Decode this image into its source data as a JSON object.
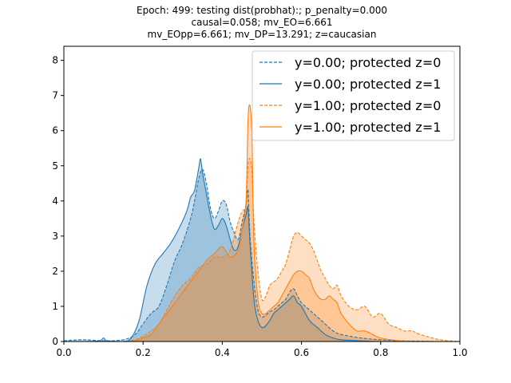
{
  "chart_data": {
    "type": "area",
    "title_lines": [
      "Epoch: 499: testing dist(probhat):; p_penalty=0.000",
      "causal=0.058; mv_EO=6.661",
      "mv_EOpp=6.661; mv_DP=13.291; z=caucasian"
    ],
    "xlabel": "",
    "ylabel": "",
    "xlim": [
      0.0,
      1.0
    ],
    "ylim": [
      0,
      8.4
    ],
    "x_ticks": [
      0.0,
      0.2,
      0.4,
      0.6,
      0.8,
      1.0
    ],
    "x_tick_labels": [
      "0.0",
      "0.2",
      "0.4",
      "0.6",
      "0.8",
      "1.0"
    ],
    "y_ticks": [
      0,
      1,
      2,
      3,
      4,
      5,
      6,
      7,
      8
    ],
    "y_tick_labels": [
      "0",
      "1",
      "2",
      "3",
      "4",
      "5",
      "6",
      "7",
      "8"
    ],
    "grid": false,
    "legend_position": "top-right",
    "series": [
      {
        "name": "y=0.00; protected z=0",
        "color": "#1f77b4",
        "dash": true,
        "x": [
          0.0,
          0.05,
          0.1,
          0.15,
          0.18,
          0.2,
          0.22,
          0.24,
          0.26,
          0.28,
          0.3,
          0.32,
          0.33,
          0.34,
          0.35,
          0.36,
          0.37,
          0.38,
          0.39,
          0.4,
          0.41,
          0.42,
          0.43,
          0.44,
          0.45,
          0.46,
          0.465,
          0.47,
          0.48,
          0.49,
          0.5,
          0.51,
          0.52,
          0.53,
          0.54,
          0.55,
          0.56,
          0.57,
          0.58,
          0.59,
          0.6,
          0.62,
          0.64,
          0.66,
          0.68,
          0.7,
          0.75,
          0.8,
          0.85,
          0.9,
          0.95,
          1.0
        ],
        "y": [
          0.02,
          0.05,
          0.02,
          0.05,
          0.2,
          0.5,
          0.8,
          1.0,
          1.6,
          2.3,
          2.8,
          3.5,
          4.0,
          4.6,
          4.9,
          4.5,
          3.8,
          3.5,
          3.7,
          4.0,
          3.9,
          3.4,
          3.1,
          2.9,
          3.4,
          3.9,
          4.3,
          3.0,
          1.7,
          0.9,
          0.7,
          0.75,
          0.85,
          0.9,
          1.0,
          1.1,
          1.2,
          1.4,
          1.5,
          1.3,
          1.1,
          0.9,
          0.7,
          0.5,
          0.3,
          0.2,
          0.1,
          0.05,
          0.02,
          0.01,
          0.0,
          0.0
        ]
      },
      {
        "name": "y=0.00; protected z=1",
        "color": "#1f77b4",
        "dash": false,
        "x": [
          0.0,
          0.05,
          0.09,
          0.1,
          0.11,
          0.15,
          0.17,
          0.19,
          0.21,
          0.23,
          0.25,
          0.27,
          0.29,
          0.31,
          0.32,
          0.33,
          0.34,
          0.345,
          0.35,
          0.36,
          0.37,
          0.38,
          0.39,
          0.4,
          0.41,
          0.42,
          0.43,
          0.44,
          0.45,
          0.46,
          0.465,
          0.47,
          0.48,
          0.49,
          0.5,
          0.51,
          0.52,
          0.53,
          0.54,
          0.55,
          0.56,
          0.57,
          0.58,
          0.59,
          0.6,
          0.62,
          0.64,
          0.66,
          0.68,
          0.7,
          0.75,
          0.8,
          0.85,
          0.9,
          1.0
        ],
        "y": [
          0.0,
          0.0,
          0.02,
          0.1,
          0.02,
          0.0,
          0.1,
          0.6,
          1.6,
          2.2,
          2.5,
          2.8,
          3.2,
          3.7,
          4.1,
          4.3,
          4.9,
          5.2,
          4.8,
          4.2,
          3.6,
          3.2,
          3.3,
          3.5,
          3.3,
          2.9,
          2.6,
          2.7,
          3.2,
          3.6,
          3.8,
          2.8,
          1.2,
          0.6,
          0.4,
          0.45,
          0.6,
          0.8,
          0.9,
          1.0,
          1.1,
          1.2,
          1.3,
          1.1,
          1.0,
          0.6,
          0.4,
          0.2,
          0.1,
          0.05,
          0.02,
          0.0,
          0.0,
          0.0,
          0.0
        ]
      },
      {
        "name": "y=1.00; protected z=0",
        "color": "#ff7f0e",
        "dash": true,
        "x": [
          0.0,
          0.1,
          0.15,
          0.18,
          0.2,
          0.22,
          0.24,
          0.26,
          0.28,
          0.3,
          0.32,
          0.34,
          0.36,
          0.38,
          0.4,
          0.42,
          0.44,
          0.45,
          0.46,
          0.465,
          0.47,
          0.475,
          0.48,
          0.49,
          0.5,
          0.51,
          0.52,
          0.53,
          0.54,
          0.55,
          0.56,
          0.57,
          0.58,
          0.59,
          0.6,
          0.61,
          0.62,
          0.63,
          0.64,
          0.65,
          0.66,
          0.67,
          0.68,
          0.69,
          0.7,
          0.72,
          0.74,
          0.76,
          0.78,
          0.8,
          0.82,
          0.84,
          0.86,
          0.88,
          0.9,
          0.95,
          1.0
        ],
        "y": [
          0.0,
          0.0,
          0.0,
          0.05,
          0.15,
          0.3,
          0.5,
          0.9,
          1.3,
          1.6,
          1.8,
          2.1,
          2.2,
          2.4,
          2.4,
          2.6,
          3.4,
          3.7,
          3.9,
          5.0,
          5.2,
          4.8,
          3.4,
          2.0,
          1.2,
          1.3,
          1.6,
          1.7,
          1.8,
          2.0,
          2.2,
          2.6,
          3.0,
          3.1,
          3.0,
          2.9,
          2.8,
          2.6,
          2.3,
          2.0,
          1.8,
          1.6,
          1.5,
          1.6,
          1.3,
          1.0,
          0.9,
          1.0,
          0.7,
          0.8,
          0.5,
          0.4,
          0.3,
          0.3,
          0.2,
          0.05,
          0.0
        ]
      },
      {
        "name": "y=1.00; protected z=1",
        "color": "#ff7f0e",
        "dash": false,
        "x": [
          0.0,
          0.1,
          0.15,
          0.18,
          0.2,
          0.22,
          0.24,
          0.26,
          0.28,
          0.3,
          0.32,
          0.34,
          0.36,
          0.38,
          0.4,
          0.42,
          0.44,
          0.45,
          0.46,
          0.465,
          0.47,
          0.475,
          0.48,
          0.49,
          0.5,
          0.51,
          0.52,
          0.53,
          0.54,
          0.55,
          0.56,
          0.57,
          0.58,
          0.59,
          0.6,
          0.61,
          0.62,
          0.63,
          0.64,
          0.65,
          0.66,
          0.67,
          0.68,
          0.69,
          0.7,
          0.72,
          0.74,
          0.76,
          0.78,
          0.8,
          0.85,
          0.9,
          1.0
        ],
        "y": [
          0.0,
          0.0,
          0.0,
          0.02,
          0.1,
          0.2,
          0.5,
          0.8,
          1.1,
          1.4,
          1.7,
          2.0,
          2.3,
          2.5,
          2.7,
          2.4,
          2.6,
          3.2,
          4.0,
          6.3,
          6.7,
          5.8,
          2.8,
          1.2,
          0.8,
          0.8,
          0.9,
          1.0,
          1.1,
          1.3,
          1.5,
          1.7,
          1.9,
          2.0,
          2.0,
          1.9,
          1.8,
          1.5,
          1.3,
          1.2,
          1.2,
          1.3,
          1.2,
          1.1,
          0.8,
          0.5,
          0.3,
          0.3,
          0.2,
          0.1,
          0.02,
          0.0,
          0.0
        ]
      }
    ]
  }
}
